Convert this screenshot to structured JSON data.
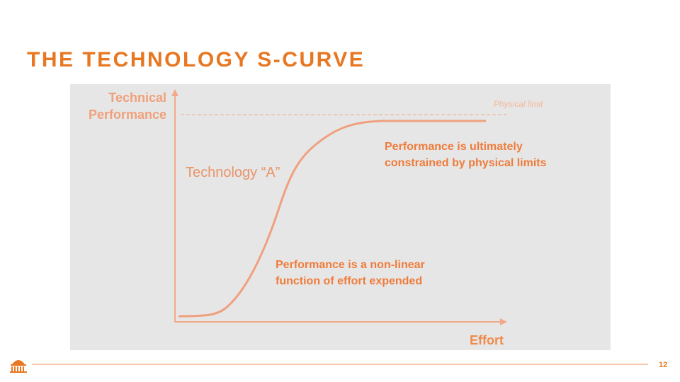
{
  "header": {
    "title": "THE TECHNOLOGY S-CURVE"
  },
  "diagram": {
    "y_axis_label": [
      "Technical",
      "Performance"
    ],
    "x_axis_label": "Effort",
    "limit_label": "Physical limit",
    "curve_label": "Technology “A”",
    "annotations": [
      [
        "Performance is ultimately",
        "constrained by physical limits"
      ],
      [
        "Performance is a non-linear",
        "function of effort expended"
      ]
    ]
  },
  "footer": {
    "page_number": "12"
  }
}
